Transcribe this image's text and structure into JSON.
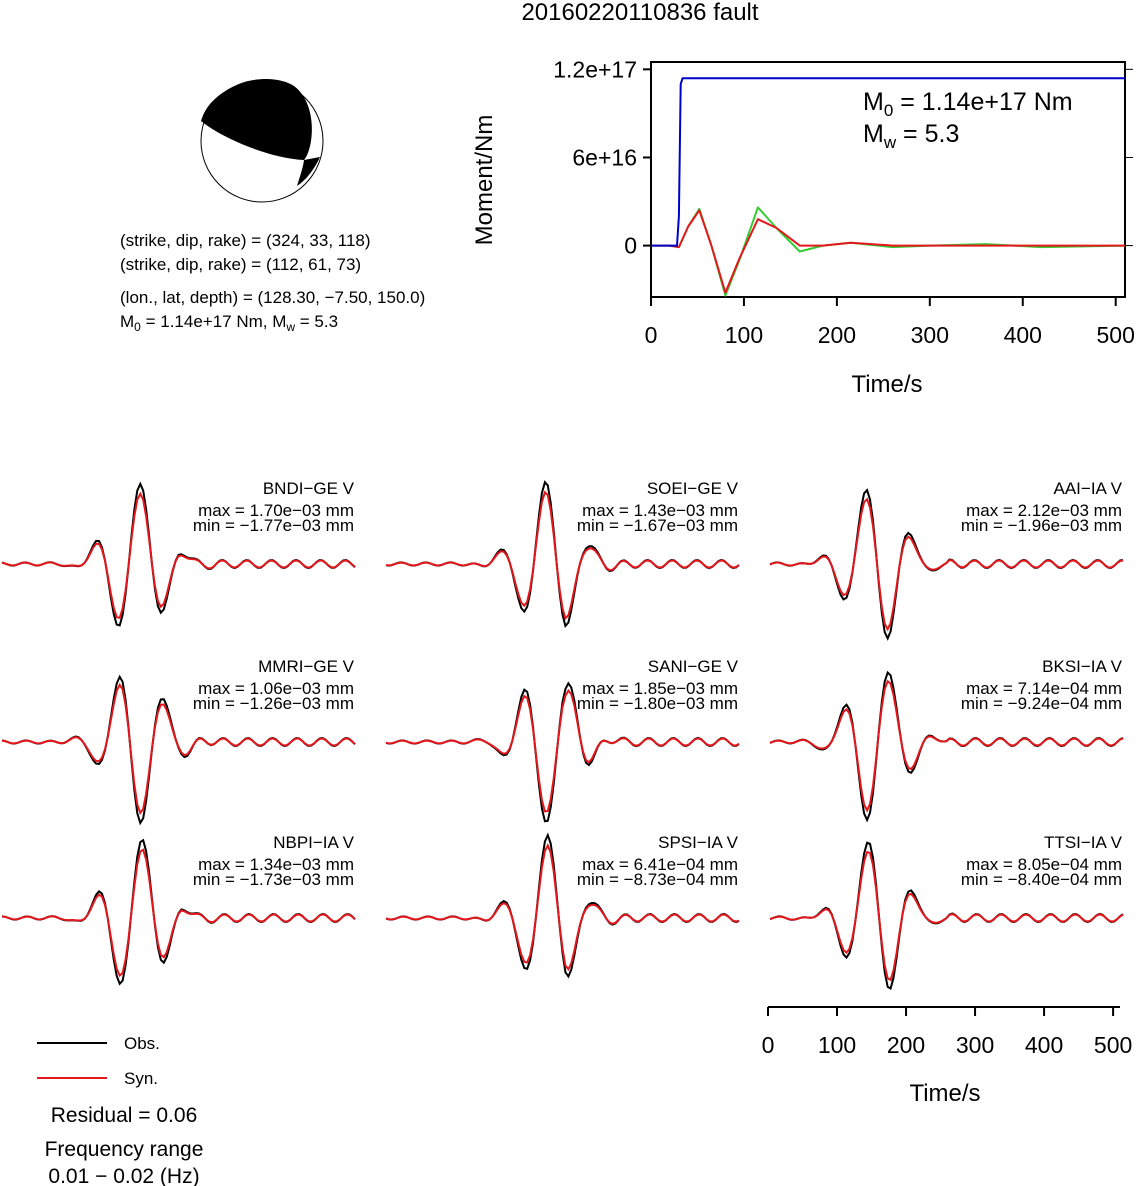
{
  "figure_title": "20160220110836 fault",
  "colors": {
    "observed": "#000000",
    "synthetic": "#e4181c",
    "moment_curve": "#0000cc",
    "stf_green": "#33cc33"
  },
  "mechanism": {
    "line1": "(strike, dip, rake) = (324, 33, 118)",
    "line2": "(strike, dip, rake) = (112, 61, 73)",
    "location": "(lon., lat, depth) = (128.30, −7.50, 150.0)",
    "moment_prefix": "M",
    "moment_sub": "0",
    "moment_rest": " = 1.14e+17 Nm, M",
    "mw_sub": "w",
    "mw_rest": " = 5.3"
  },
  "moment_panel": {
    "m0_prefix": "M",
    "m0_sub": "0",
    "m0_rest": " = 1.14e+17 Nm",
    "mw_prefix": "M",
    "mw_sub": "w",
    "mw_rest": " = 5.3",
    "ylabel": "Moment/Nm",
    "xlabel": "Time/s",
    "yticks": [
      "0",
      "6e+16",
      "1.2e+17"
    ],
    "xticks": [
      "0",
      "100",
      "200",
      "300",
      "400",
      "500"
    ]
  },
  "stations": [
    {
      "name": "BNDI−GE V",
      "max": "max = 1.70e−03 mm",
      "min": "min = −1.77e−03 mm"
    },
    {
      "name": "SOEI−GE V",
      "max": "max = 1.43e−03 mm",
      "min": "min = −1.67e−03 mm"
    },
    {
      "name": "AAI−IA V",
      "max": "max = 2.12e−03 mm",
      "min": "min = −1.96e−03 mm"
    },
    {
      "name": "MMRI−GE V",
      "max": "max = 1.06e−03 mm",
      "min": "min = −1.26e−03 mm"
    },
    {
      "name": "SANI−GE V",
      "max": "max = 1.85e−03 mm",
      "min": "min = −1.80e−03 mm"
    },
    {
      "name": "BKSI−IA V",
      "max": "max = 7.14e−04 mm",
      "min": "min = −9.24e−04 mm"
    },
    {
      "name": "NBPI−IA V",
      "max": "max = 1.34e−03 mm",
      "min": "min = −1.73e−03 mm"
    },
    {
      "name": "SPSI−IA V",
      "max": "max = 6.41e−04 mm",
      "min": "min = −8.73e−04 mm"
    },
    {
      "name": "TTSI−IA V",
      "max": "max = 8.05e−04 mm",
      "min": "min = −8.40e−04 mm"
    }
  ],
  "waveform_axis": {
    "xlabel": "Time/s",
    "xticks": [
      "0",
      "100",
      "200",
      "300",
      "400",
      "500"
    ]
  },
  "legend": {
    "obs": "Obs.",
    "syn": "Syn."
  },
  "residual": "Residual = 0.06",
  "freq_label": "Frequency range",
  "freq_range": "0.01 − 0.02 (Hz)",
  "chart_data": [
    {
      "type": "line",
      "title": "",
      "xlabel": "Time/s",
      "ylabel": "Moment/Nm",
      "xlim": [
        0,
        510
      ],
      "ylim": [
        -3.5e+16,
        1.25e+17
      ],
      "series": [
        {
          "x": [
            0,
            28,
            30,
            32,
            34,
            510
          ],
          "values": [
            0,
            0,
            2e+16,
            1.1e+17,
            1.14e+17,
            1.14e+17
          ]
        },
        {
          "x": [
            0,
            20,
            30,
            40,
            52,
            65,
            80,
            95,
            115,
            135,
            160,
            185,
            215,
            260,
            300,
            360,
            420,
            510
          ],
          "values": [
            0,
            0,
            -1000000000000000.0,
            1.3e+16,
            2.5e+16,
            0,
            -3.4e+16,
            -1e+16,
            2.6e+16,
            1.2e+16,
            -4000000000000000.0,
            0,
            2000000000000000.0,
            -1000000000000000.0,
            0,
            1000000000000000.0,
            -1000000000000000.0,
            0
          ]
        },
        {
          "x": [
            0,
            20,
            30,
            40,
            52,
            65,
            80,
            95,
            115,
            135,
            160,
            185,
            215,
            260,
            300,
            360,
            420,
            510
          ],
          "values": [
            0,
            0,
            -1000000000000000.0,
            1.3e+16,
            2.4e+16,
            0,
            -3.2e+16,
            -9000000000000000.0,
            1.8e+16,
            1.2e+16,
            0,
            0,
            2000000000000000.0,
            0,
            0,
            0,
            0,
            0
          ]
        }
      ]
    }
  ]
}
